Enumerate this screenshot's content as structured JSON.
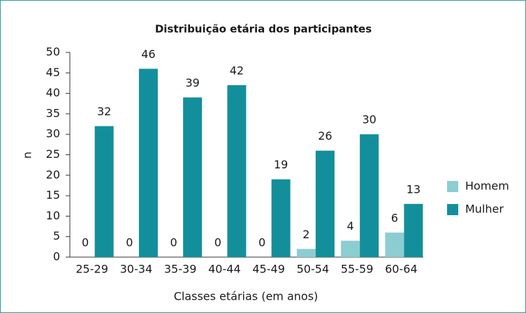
{
  "chart_data": {
    "type": "bar",
    "title": "Distribuição etária dos participantes",
    "xlabel": "Classes etárias (em anos)",
    "ylabel": "n",
    "categories": [
      "25-29",
      "30-34",
      "35-39",
      "40-44",
      "45-49",
      "50-54",
      "55-59",
      "60-64"
    ],
    "series": [
      {
        "name": "Homem",
        "color": "#8ccdd1",
        "values": [
          0,
          0,
          0,
          0,
          0,
          2,
          4,
          6
        ]
      },
      {
        "name": "Mulher",
        "color": "#138f9b",
        "values": [
          32,
          46,
          39,
          42,
          19,
          26,
          30,
          13
        ]
      }
    ],
    "ylim": [
      0,
      50
    ],
    "yticks": [
      0,
      5,
      10,
      15,
      20,
      25,
      30,
      35,
      40,
      45,
      50
    ],
    "grid": false,
    "legend": "right"
  }
}
